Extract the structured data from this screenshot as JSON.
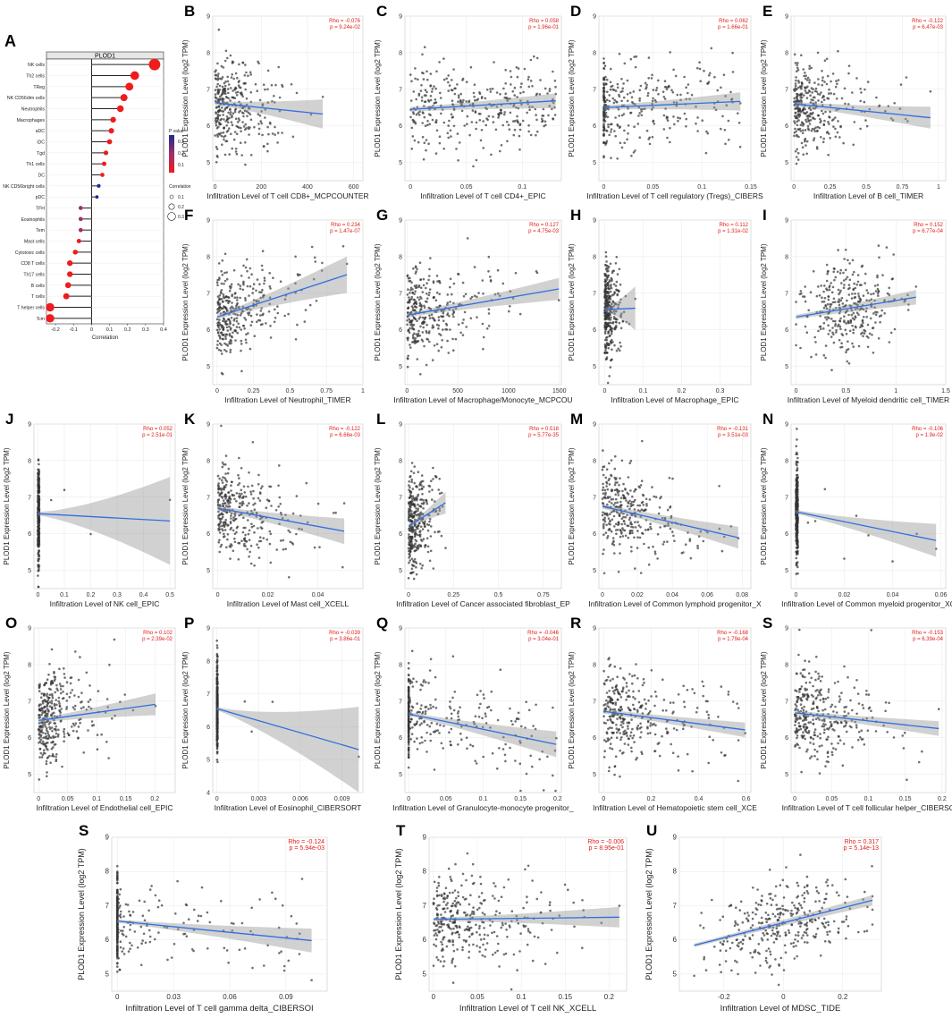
{
  "figure": {
    "ylabel": "PLOD1 Expression Level (log2 TPM)",
    "yticks": [
      5,
      6,
      7,
      8,
      9
    ]
  },
  "panelA": {
    "letter": "A",
    "title": "PLOD1",
    "xlabel": "Correlation",
    "xticks": [
      -0.2,
      -0.1,
      0.0,
      0.1,
      0.2,
      0.3,
      0.4
    ],
    "legend_pvalue_title": "P value",
    "legend_pvalue_ticks": [
      "0.3",
      "0.2",
      "0.1"
    ],
    "legend_corr_title": "Correlation",
    "legend_corr_ticks": [
      "0.1",
      "0.2",
      "0.3"
    ],
    "colors": {
      "high": "#ee1c1c",
      "low": "#1c2c8c",
      "stem": "#222222"
    }
  },
  "chart_data": [
    {
      "panel": "A",
      "type": "lollipop",
      "title": "PLOD1",
      "xlabel": "Correlation",
      "xlim": [
        -0.25,
        0.4
      ],
      "categories": [
        "NK cells",
        "Th2 cells",
        "TReg",
        "NK CD56dim cells",
        "Neutrophils",
        "Macrophages",
        "aDC",
        "iDC",
        "Tgd",
        "Th1 cells",
        "DC",
        "NK CD56bright cells",
        "pDC",
        "TFH",
        "Eosinophils",
        "Tem",
        "Mast cells",
        "Cytotoxic cells",
        "CD8 T cells",
        "Th17 cells",
        "B cells",
        "T cells",
        "T helper cells",
        "Tcm"
      ],
      "values": [
        0.35,
        0.24,
        0.21,
        0.18,
        0.16,
        0.12,
        0.11,
        0.1,
        0.08,
        0.07,
        0.06,
        0.04,
        0.03,
        -0.06,
        -0.06,
        -0.06,
        -0.07,
        -0.09,
        -0.12,
        -0.12,
        -0.13,
        -0.14,
        -0.23,
        -0.23
      ],
      "pvalues": [
        0.01,
        0.01,
        0.01,
        0.01,
        0.01,
        0.02,
        0.02,
        0.03,
        0.05,
        0.05,
        0.08,
        0.3,
        0.3,
        0.2,
        0.2,
        0.15,
        0.1,
        0.05,
        0.02,
        0.02,
        0.02,
        0.01,
        0.01,
        0.01
      ]
    },
    {
      "panel": "B",
      "type": "scatter",
      "xlabel": "Infiltration Level of T cell CD8+_MCPCOUNTER",
      "xlim": [
        -10,
        640
      ],
      "ylim": [
        4.5,
        9
      ],
      "xticks": [
        0,
        200,
        400,
        600
      ],
      "rho": "Rho = -0.076",
      "p": "p = 9.24e-02",
      "fit": [
        6.63,
        -0.00066
      ],
      "band": [
        0.06,
        0.4
      ],
      "dist": {
        "kind": "skew",
        "scale": 100,
        "max": 640
      },
      "seed": 2
    },
    {
      "panel": "C",
      "type": "scatter",
      "xlabel": "Infiltration Level of T cell CD4+_EPIC",
      "xlim": [
        -0.005,
        0.135
      ],
      "ylim": [
        4.5,
        9
      ],
      "xticks": [
        0.0,
        0.05,
        0.1
      ],
      "rho": "Rho = 0.058",
      "p": "p = 1.96e-01",
      "fit": [
        6.45,
        1.8
      ],
      "band": [
        0.06,
        0.2
      ],
      "dist": {
        "kind": "uniform",
        "min": 0,
        "max": 0.13
      },
      "seed": 3
    },
    {
      "panel": "D",
      "type": "scatter",
      "xlabel": "Infiltration Level of T cell regulatory (Tregs)_CIBERS",
      "xlim": [
        -0.005,
        0.15
      ],
      "ylim": [
        4.5,
        9
      ],
      "xticks": [
        0.0,
        0.05,
        0.1,
        0.15
      ],
      "rho": "Rho = 0.062",
      "p": "p = 1.66e-01",
      "fit": [
        6.5,
        1.2
      ],
      "band": [
        0.06,
        0.25
      ],
      "dist": {
        "kind": "mix",
        "zero": 0.15,
        "min": 0,
        "max": 0.14
      },
      "seed": 4
    },
    {
      "panel": "E",
      "type": "scatter",
      "xlabel": "Infiltration Level of B cell_TIMER",
      "xlim": [
        -0.02,
        1.05
      ],
      "ylim": [
        4.5,
        9
      ],
      "xticks": [
        0.0,
        0.25,
        0.5,
        0.75,
        1.0
      ],
      "rho": "Rho = -0.122",
      "p": "p = 6.47e-03",
      "fit": [
        6.6,
        -0.4
      ],
      "band": [
        0.06,
        0.3
      ],
      "dist": {
        "kind": "skew",
        "scale": 0.15,
        "max": 1.02
      },
      "seed": 5
    },
    {
      "panel": "F",
      "type": "scatter",
      "xlabel": "Infiltration Level of Neutrophil_TIMER",
      "xlim": [
        -0.03,
        1.0
      ],
      "ylim": [
        4.5,
        9
      ],
      "xticks": [
        0.0,
        0.25,
        0.5,
        0.75,
        1.0
      ],
      "rho": "Rho = 0.234",
      "p": "p = 1.47e-07",
      "fit": [
        6.35,
        1.3
      ],
      "band": [
        0.06,
        0.5
      ],
      "dist": {
        "kind": "skew",
        "scale": 0.18,
        "max": 0.95
      },
      "seed": 6
    },
    {
      "panel": "G",
      "type": "scatter",
      "xlabel": "Infiltration Level of Macrophage/Monocyte_MCPCOU",
      "xlim": [
        -20,
        1520
      ],
      "ylim": [
        4.5,
        9
      ],
      "xticks": [
        0,
        500,
        1000,
        1500
      ],
      "rho": "Rho = 0.127",
      "p": "p = 4.75e-03",
      "fit": [
        6.4,
        0.00048
      ],
      "band": [
        0.06,
        0.3
      ],
      "dist": {
        "kind": "skew",
        "scale": 280,
        "max": 1500
      },
      "seed": 7
    },
    {
      "panel": "H",
      "type": "scatter",
      "xlabel": "Infiltration Level of Macrophage_EPIC",
      "xlim": [
        -0.015,
        0.38
      ],
      "ylim": [
        4.5,
        9
      ],
      "xticks": [
        0.0,
        0.1,
        0.2,
        0.3
      ],
      "rho": "Rho = 0.112",
      "p": "p = 1.31e-02",
      "fit": [
        6.55,
        0.5
      ],
      "band": [
        0.06,
        0.6
      ],
      "dist": {
        "kind": "skew",
        "scale": 0.012,
        "max": 0.37
      },
      "seed": 8
    },
    {
      "panel": "I",
      "type": "scatter",
      "xlabel": "Infiltration Level of Myeloid dendritic cell_TIMER",
      "xlim": [
        -0.05,
        1.5
      ],
      "ylim": [
        4.5,
        9
      ],
      "xticks": [
        0.0,
        0.5,
        1.0,
        1.5
      ],
      "rho": "Rho = 0.152",
      "p": "p = 6.77e-04",
      "fit": [
        6.35,
        0.45
      ],
      "band": [
        0.06,
        0.2
      ],
      "dist": {
        "kind": "normal",
        "mean": 0.55,
        "sd": 0.25,
        "min": 0,
        "max": 1.45
      },
      "seed": 9
    },
    {
      "panel": "J",
      "type": "scatter",
      "xlabel": "Infiltration Level of NK cell_EPIC",
      "xlim": [
        -0.015,
        0.52
      ],
      "ylim": [
        4.5,
        9
      ],
      "xticks": [
        0.0,
        0.1,
        0.2,
        0.3,
        0.4,
        0.5
      ],
      "rho": "Rho = 0.052",
      "p": "p = 2.51e-01",
      "fit": [
        6.55,
        -0.4
      ],
      "band": [
        0.05,
        1.2
      ],
      "dist": {
        "kind": "zero",
        "min": 0,
        "max": 0.005,
        "extra": [
          0.05,
          0.1,
          0.2,
          0.5
        ]
      },
      "seed": 10
    },
    {
      "panel": "K",
      "type": "scatter",
      "xlabel": "Infiltration Level of Mast cell_XCELL",
      "xlim": [
        -0.002,
        0.058
      ],
      "ylim": [
        4.5,
        9
      ],
      "xticks": [
        0.0,
        0.02,
        0.04
      ],
      "rho": "Rho = -0.122",
      "p": "p = 6.66e-03",
      "fit": [
        6.7,
        -12.5
      ],
      "band": [
        0.06,
        0.35
      ],
      "dist": {
        "kind": "skew",
        "scale": 0.01,
        "max": 0.056
      },
      "seed": 11
    },
    {
      "panel": "L",
      "type": "scatter",
      "xlabel": "Infiltration Level of Cancer associated fibroblast_EP",
      "xlim": [
        -0.02,
        0.85
      ],
      "ylim": [
        4.5,
        9
      ],
      "xticks": [
        0.0,
        0.25,
        0.5,
        0.75
      ],
      "rho": "Rho = 0.518",
      "p": "p = 5.77e-35",
      "fit": [
        6.2,
        3.15
      ],
      "band": [
        0.04,
        0.3
      ],
      "dist": {
        "kind": "skew",
        "scale": 0.05,
        "max": 0.84
      },
      "seed": 12
    },
    {
      "panel": "M",
      "type": "scatter",
      "xlabel": "Infiltration Level of Common lymphoid progenitor_X",
      "xlim": [
        -0.002,
        0.085
      ],
      "ylim": [
        4.5,
        9
      ],
      "xticks": [
        0.0,
        0.02,
        0.04,
        0.06,
        0.08
      ],
      "rho": "Rho = -0.131",
      "p": "p = 3.51e-03",
      "fit": [
        6.75,
        -11.0
      ],
      "band": [
        0.06,
        0.3
      ],
      "dist": {
        "kind": "skew",
        "scale": 0.018,
        "max": 0.08
      },
      "seed": 13
    },
    {
      "panel": "N",
      "type": "scatter",
      "xlabel": "Infiltration Level of Common myeloid progenitor_XC",
      "xlim": [
        -0.002,
        0.062
      ],
      "ylim": [
        4.5,
        9
      ],
      "xticks": [
        0.0,
        0.02,
        0.04,
        0.06
      ],
      "rho": "Rho = -0.106",
      "p": "p = 1.9e-02",
      "fit": [
        6.6,
        -13.5
      ],
      "band": [
        0.05,
        0.45
      ],
      "dist": {
        "kind": "zero",
        "min": 0,
        "max": 0.0008,
        "extra": [
          0.005,
          0.008,
          0.012,
          0.02,
          0.025,
          0.03,
          0.04,
          0.05,
          0.058
        ]
      },
      "seed": 14
    },
    {
      "panel": "O",
      "type": "scatter",
      "xlabel": "Infiltration Level of Endothelial cell_EPIC",
      "xlim": [
        -0.008,
        0.235
      ],
      "ylim": [
        4.5,
        9
      ],
      "xticks": [
        0.0,
        0.05,
        0.1,
        0.15,
        0.2
      ],
      "rho": "Rho = 0.102",
      "p": "p = 2.39e-02",
      "fit": [
        6.47,
        2.2
      ],
      "band": [
        0.06,
        0.3
      ],
      "dist": {
        "kind": "skew",
        "scale": 0.035,
        "max": 0.23
      },
      "seed": 15
    },
    {
      "panel": "P",
      "type": "scatter",
      "xlabel": "Infiltration Level of Eosinophil_CIBERSORT",
      "xlim": [
        -0.0003,
        0.0105
      ],
      "ylim": [
        4,
        9
      ],
      "xticks": [
        0.0,
        0.003,
        0.006,
        0.009
      ],
      "rho": "Rho = -0.039",
      "p": "p = 3.86e-01",
      "fit": [
        6.55,
        -122
      ],
      "band": [
        0.05,
        1.3
      ],
      "dist": {
        "kind": "zero",
        "min": 0,
        "max": 5e-05,
        "extra": [
          0.002,
          0.0025,
          0.004,
          0.0102
        ]
      },
      "seed": 16
    },
    {
      "panel": "Q",
      "type": "scatter",
      "xlabel": "Infiltration Level of Granulocyte-monocyte progenitor_",
      "xlim": [
        -0.005,
        0.205
      ],
      "ylim": [
        4.5,
        9
      ],
      "xticks": [
        0.0,
        0.05,
        0.1,
        0.15,
        0.2
      ],
      "rho": "Rho = -0.046",
      "p": "p = 3.04e-01",
      "fit": [
        6.65,
        -4.2
      ],
      "band": [
        0.05,
        0.35
      ],
      "dist": {
        "kind": "mix",
        "zero": 0.4,
        "min": 0,
        "max": 0.2
      },
      "seed": 17
    },
    {
      "panel": "R",
      "type": "scatter",
      "xlabel": "Infiltration Level of Hematopoietic stem cell_XCE",
      "xlim": [
        -0.02,
        0.62
      ],
      "ylim": [
        4.5,
        9
      ],
      "xticks": [
        0.0,
        0.2,
        0.4,
        0.6
      ],
      "rho": "Rho = -0.168",
      "p": "p = 1.79e-04",
      "fit": [
        6.72,
        -0.85
      ],
      "band": [
        0.06,
        0.2
      ],
      "dist": {
        "kind": "skew",
        "scale": 0.15,
        "max": 0.6
      },
      "seed": 18
    },
    {
      "panel": "S",
      "type": "scatter",
      "xlabel": "Infiltration Level of T cell follicular helper_CIBERSO",
      "xlim": [
        -0.005,
        0.205
      ],
      "ylim": [
        4.5,
        9
      ],
      "xticks": [
        0.0,
        0.05,
        0.1,
        0.15,
        0.2
      ],
      "rho": "Rho = -0.153",
      "p": "p = 6.39e-04",
      "fit": [
        6.68,
        -2.2
      ],
      "band": [
        0.06,
        0.2
      ],
      "dist": {
        "kind": "skew",
        "scale": 0.04,
        "max": 0.2
      },
      "seed": 19
    },
    {
      "panel": "S",
      "type": "scatter",
      "xlabel": "Infiltration Level of T cell gamma delta_CIBERSOI",
      "xlim": [
        -0.003,
        0.112
      ],
      "ylim": [
        4.5,
        9
      ],
      "xticks": [
        0.0,
        0.03,
        0.06,
        0.09
      ],
      "rho": "Rho = -0.124",
      "p": "p = 5.94e-03",
      "fit": [
        6.55,
        -5.5
      ],
      "band": [
        0.05,
        0.35
      ],
      "dist": {
        "kind": "mix",
        "zero": 0.6,
        "min": 0,
        "max": 0.11
      },
      "seed": 20
    },
    {
      "panel": "T",
      "type": "scatter",
      "xlabel": "Infiltration Level of T cell NK_XCELL",
      "xlim": [
        -0.005,
        0.22
      ],
      "ylim": [
        4.5,
        9
      ],
      "xticks": [
        0.0,
        0.05,
        0.1,
        0.15,
        0.2
      ],
      "rho": "Rho = -0.006",
      "p": "p = 8.95e-01",
      "fit": [
        6.6,
        0.3
      ],
      "band": [
        0.05,
        0.3
      ],
      "dist": {
        "kind": "skew",
        "scale": 0.05,
        "max": 0.22
      },
      "seed": 21
    },
    {
      "panel": "U",
      "type": "scatter",
      "xlabel": "Infiltration Level of MDSC_TIDE",
      "xlim": [
        -0.35,
        0.33
      ],
      "ylim": [
        4.5,
        9
      ],
      "xticks": [
        -0.2,
        0.0,
        0.2
      ],
      "rho": "Rho = 0.317",
      "p": "p = 5.14e-13",
      "fit": [
        6.5,
        2.2
      ],
      "band": [
        0.05,
        0.15
      ],
      "dist": {
        "kind": "normal",
        "mean": 0.0,
        "sd": 0.12,
        "min": -0.3,
        "max": 0.3
      },
      "seed": 22
    }
  ]
}
